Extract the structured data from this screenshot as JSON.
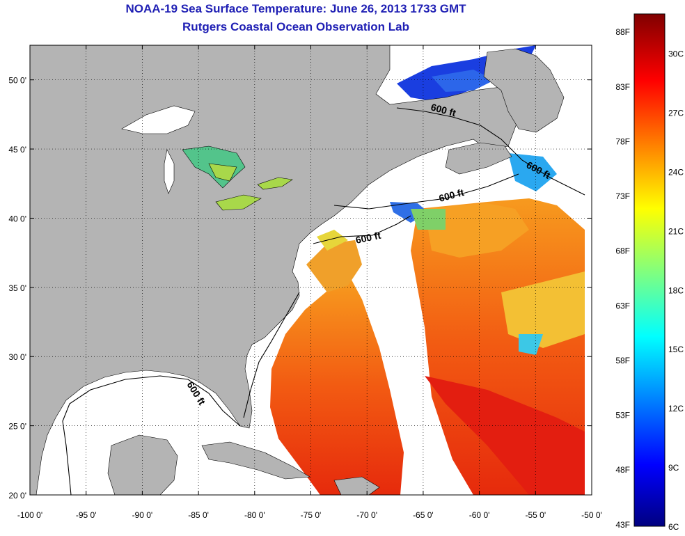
{
  "title": "NOAA-19 Sea Surface Temperature:  June 26, 2013 1733 GMT",
  "subtitle": "Rutgers Coastal Ocean Observation Lab",
  "map": {
    "lon_range": [
      -100,
      -50
    ],
    "lat_range": [
      20,
      52.5
    ],
    "x_ticks": [
      {
        "lon": -100,
        "label": "-100 0'"
      },
      {
        "lon": -95,
        "label": "-95 0'"
      },
      {
        "lon": -90,
        "label": "-90 0'"
      },
      {
        "lon": -85,
        "label": "-85 0'"
      },
      {
        "lon": -80,
        "label": "-80 0'"
      },
      {
        "lon": -75,
        "label": "-75 0'"
      },
      {
        "lon": -70,
        "label": "-70 0'"
      },
      {
        "lon": -65,
        "label": "-65 0'"
      },
      {
        "lon": -60,
        "label": "-60 0'"
      },
      {
        "lon": -55,
        "label": "-55 0'"
      },
      {
        "lon": -50,
        "label": "-50 0'"
      }
    ],
    "y_ticks": [
      {
        "lat": 50,
        "label": "50 0'"
      },
      {
        "lat": 45,
        "label": "45 0'"
      },
      {
        "lat": 40,
        "label": "40 0'"
      },
      {
        "lat": 35,
        "label": "35 0'"
      },
      {
        "lat": 30,
        "label": "30 0'"
      },
      {
        "lat": 25,
        "label": "25 0'"
      },
      {
        "lat": 20,
        "label": "20 0'"
      }
    ],
    "grid": "dotted",
    "contour_label": "600 ft",
    "land_color": "#b4b4b4",
    "no_data_color": "#ffffff"
  },
  "colorbar": {
    "min_c": 6,
    "max_c": 32,
    "fahrenheit_labels": [
      "43F",
      "48F",
      "53F",
      "58F",
      "63F",
      "68F",
      "73F",
      "78F",
      "83F",
      "88F"
    ],
    "celsius_labels": [
      "6C",
      "9C",
      "12C",
      "15C",
      "18C",
      "21C",
      "24C",
      "27C",
      "30C"
    ],
    "colors": [
      "#000080",
      "#0000ff",
      "#00ffff",
      "#ffff00",
      "#ff0000",
      "#800000"
    ]
  }
}
